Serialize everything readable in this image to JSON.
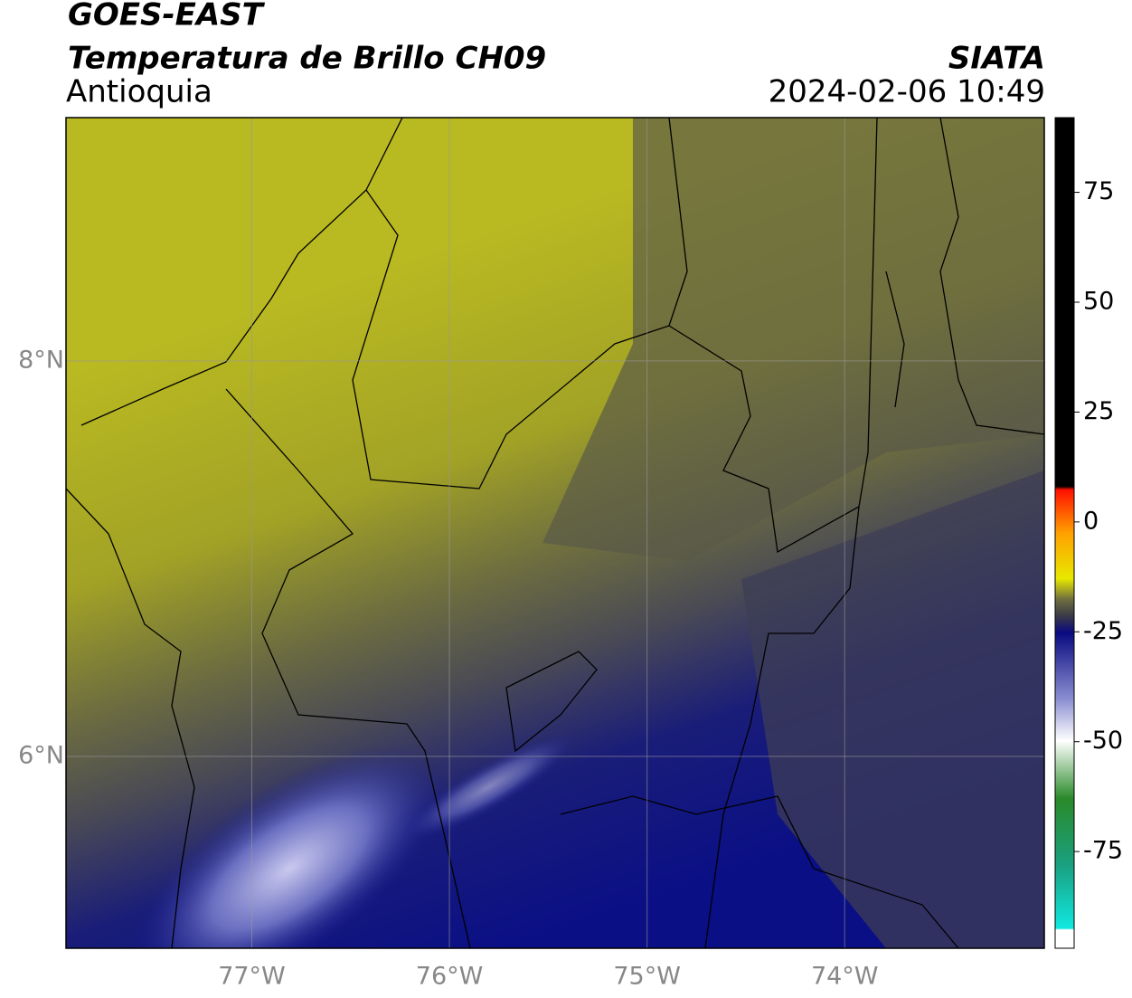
{
  "header": {
    "satellite": "GOES-EAST",
    "title": "Temperatura de Brillo CH09",
    "region": "Antioquia",
    "source": "SIATA",
    "datetime": "2024-02-06 10:49"
  },
  "map": {
    "lon_lim": [
      -77.94,
      -72.99
    ],
    "lat_lim": [
      5.03,
      9.23
    ],
    "lon_ticks": [
      {
        "value": -77,
        "label": "77°W"
      },
      {
        "value": -76,
        "label": "76°W"
      },
      {
        "value": -75,
        "label": "75°W"
      },
      {
        "value": -74,
        "label": "74°W"
      }
    ],
    "lat_ticks": [
      {
        "value": 8,
        "label": "8°N"
      },
      {
        "value": 6,
        "label": "6°N"
      }
    ],
    "grid": true
  },
  "colorbar": {
    "lim": [
      -97,
      92
    ],
    "ticks": [
      75,
      50,
      25,
      0,
      -25,
      -50,
      -75
    ]
  }
}
